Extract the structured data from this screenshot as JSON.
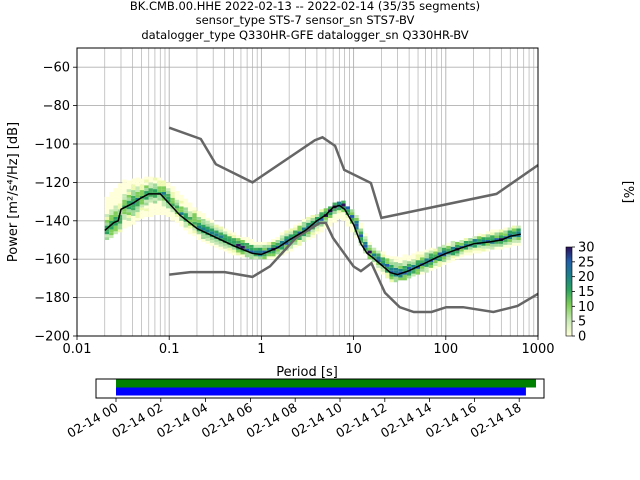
{
  "header": {
    "line1": "BK.CMB.00.HHE   2022-02-13 -- 2022-02-14  (35/35 segments)",
    "line2": "sensor_type STS-7 sensor_sn STS7-BV",
    "line3": "datalogger_type Q330HR-GFE datalogger_sn Q330HR-BV"
  },
  "chart_data": [
    {
      "type": "heatmap",
      "xlabel": "Period [s]",
      "ylabel": "Power [m²/s⁴/Hz] [dB]",
      "xscale": "log",
      "xlim": [
        0.01,
        1000
      ],
      "ylim": [
        -200,
        -50
      ],
      "xtick_labels": [
        "0.01",
        "0.1",
        "1",
        "10",
        "100",
        "1000"
      ],
      "ytick_values": [
        -200,
        -180,
        -160,
        -140,
        -120,
        -100,
        -80,
        -60
      ],
      "grid": true,
      "colors": {
        "model_curve": "#666666",
        "mode_curve": "#000000"
      },
      "noise_model_high": [
        [
          0.1,
          -91.5
        ],
        [
          0.22,
          -97.4
        ],
        [
          0.32,
          -110.5
        ],
        [
          0.8,
          -120
        ],
        [
          3.8,
          -98
        ],
        [
          4.6,
          -96.5
        ],
        [
          6.3,
          -101
        ],
        [
          7.9,
          -113.5
        ],
        [
          15.4,
          -120.3
        ],
        [
          20,
          -138.5
        ],
        [
          354.8,
          -126
        ],
        [
          1000,
          -111
        ]
      ],
      "noise_model_low": [
        [
          0.1,
          -168
        ],
        [
          0.17,
          -166.7
        ],
        [
          0.4,
          -166.7
        ],
        [
          0.8,
          -169.2
        ],
        [
          1.24,
          -163.7
        ],
        [
          2.4,
          -148.6
        ],
        [
          4.3,
          -141.1
        ],
        [
          5,
          -141.1
        ],
        [
          6,
          -149
        ],
        [
          10,
          -163.8
        ],
        [
          12,
          -166.2
        ],
        [
          15.6,
          -162.1
        ],
        [
          21.9,
          -177.5
        ],
        [
          31.6,
          -185
        ],
        [
          45,
          -187.5
        ],
        [
          70,
          -187.5
        ],
        [
          101,
          -185
        ],
        [
          154,
          -185
        ],
        [
          328,
          -187.5
        ],
        [
          600,
          -184.4
        ],
        [
          1000,
          -178
        ]
      ],
      "mode_curve": [
        [
          0.02,
          -145
        ],
        [
          0.025,
          -141
        ],
        [
          0.028,
          -140
        ],
        [
          0.03,
          -134
        ],
        [
          0.04,
          -131
        ],
        [
          0.05,
          -128
        ],
        [
          0.06,
          -126
        ],
        [
          0.08,
          -126
        ],
        [
          0.1,
          -131
        ],
        [
          0.13,
          -137
        ],
        [
          0.2,
          -144
        ],
        [
          0.3,
          -148
        ],
        [
          0.5,
          -153
        ],
        [
          0.8,
          -157
        ],
        [
          1,
          -157.5
        ],
        [
          1.5,
          -154
        ],
        [
          2,
          -150
        ],
        [
          3,
          -145
        ],
        [
          4,
          -140
        ],
        [
          5,
          -137
        ],
        [
          6,
          -133
        ],
        [
          7,
          -132
        ],
        [
          8,
          -134
        ],
        [
          10,
          -142
        ],
        [
          12,
          -152
        ],
        [
          14,
          -157
        ],
        [
          16,
          -159
        ],
        [
          20,
          -163
        ],
        [
          25,
          -167
        ],
        [
          30,
          -168
        ],
        [
          40,
          -166
        ],
        [
          60,
          -162
        ],
        [
          80,
          -159
        ],
        [
          100,
          -157
        ],
        [
          150,
          -154
        ],
        [
          200,
          -152
        ],
        [
          300,
          -151
        ],
        [
          400,
          -150
        ],
        [
          500,
          -148
        ],
        [
          650,
          -147
        ]
      ],
      "density_band": [
        [
          0.02,
          -150,
          -128
        ],
        [
          0.03,
          -144,
          -120
        ],
        [
          0.05,
          -138,
          -118
        ],
        [
          0.08,
          -136,
          -119
        ],
        [
          0.12,
          -141,
          -126
        ],
        [
          0.2,
          -150,
          -136
        ],
        [
          0.4,
          -156,
          -146
        ],
        [
          0.8,
          -160,
          -151
        ],
        [
          1.2,
          -160,
          -151
        ],
        [
          2,
          -155,
          -144
        ],
        [
          4,
          -146,
          -136
        ],
        [
          7,
          -138,
          -130
        ],
        [
          10,
          -148,
          -137
        ],
        [
          15,
          -162,
          -154
        ],
        [
          25,
          -172,
          -160
        ],
        [
          40,
          -169,
          -158
        ],
        [
          80,
          -164,
          -154
        ],
        [
          150,
          -158,
          -150
        ],
        [
          300,
          -155,
          -146
        ],
        [
          650,
          -152,
          -142
        ]
      ],
      "colorbar": {
        "label": "[%]",
        "range": [
          0,
          30
        ],
        "ticks": [
          "0",
          "5",
          "10",
          "15",
          "20",
          "25",
          "30"
        ]
      }
    },
    {
      "type": "timeline",
      "xtick_labels": [
        "02-14 00",
        "02-14 02",
        "02-14 04",
        "02-14 06",
        "02-14 08",
        "02-14 10",
        "02-14 12",
        "02-14 14",
        "02-14 16",
        "02-14 18"
      ],
      "bars": [
        {
          "color": "#008000",
          "start_hour": 0.0,
          "end_hour": 18.75
        },
        {
          "color": "#0000ff",
          "start_hour": 0.0,
          "end_hour": 18.3
        }
      ]
    }
  ]
}
